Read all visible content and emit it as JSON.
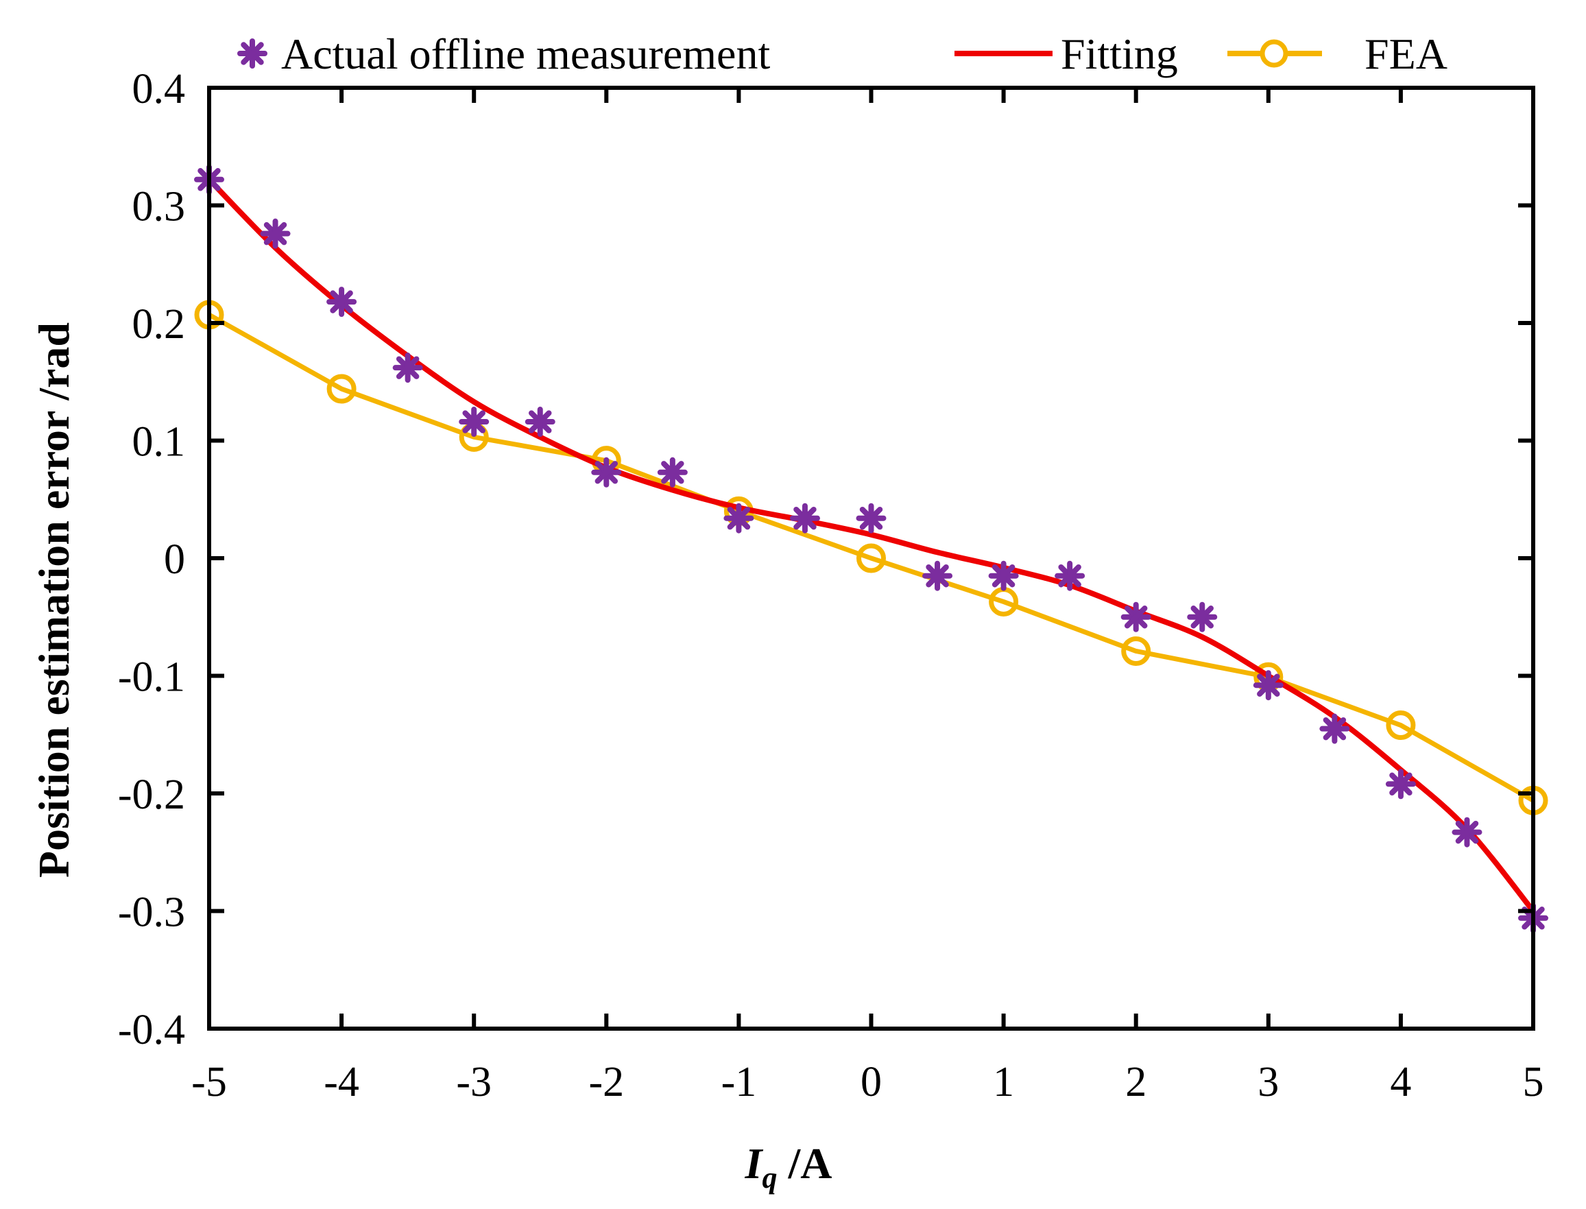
{
  "chart_data": {
    "type": "line",
    "title": "",
    "xlabel_main": "I",
    "xlabel_sub": "q",
    "xlabel_unit": " /A",
    "ylabel": "Position estimation error /rad",
    "xlim": [
      -5,
      5
    ],
    "ylim": [
      -0.4,
      0.4
    ],
    "xticks": [
      -5,
      -4,
      -3,
      -2,
      -1,
      0,
      1,
      2,
      3,
      4,
      5
    ],
    "xtick_labels": [
      "-5",
      "-4",
      "-3",
      "-2",
      "-1",
      "0",
      "1",
      "2",
      "3",
      "4",
      "5"
    ],
    "yticks": [
      -0.4,
      -0.3,
      -0.2,
      -0.1,
      0,
      0.1,
      0.2,
      0.3,
      0.4
    ],
    "ytick_labels": [
      "-0.4",
      "-0.3",
      "-0.2",
      "-0.1",
      "0",
      "0.1",
      "0.2",
      "0.3",
      "0.4"
    ],
    "grid": false,
    "legend_position": "top",
    "series": [
      {
        "name": "Actual offline measurement",
        "style": "markers-asterisk",
        "color": "#7B2D9E",
        "x": [
          -5,
          -4.5,
          -4,
          -3.5,
          -3,
          -2.5,
          -2,
          -1.5,
          -1,
          -0.5,
          0,
          0.5,
          1,
          1.5,
          2,
          2.5,
          3,
          3.5,
          4,
          4.5,
          5
        ],
        "y": [
          0.322,
          0.276,
          0.218,
          0.162,
          0.116,
          0.116,
          0.073,
          0.073,
          0.034,
          0.034,
          0.034,
          -0.015,
          -0.015,
          -0.015,
          -0.05,
          -0.05,
          -0.108,
          -0.145,
          -0.192,
          -0.233,
          -0.306
        ]
      },
      {
        "name": "Fitting",
        "style": "line",
        "color": "#EE0000",
        "x": [
          -5,
          -4.5,
          -4,
          -3.5,
          -3,
          -2.5,
          -2,
          -1.5,
          -1,
          -0.5,
          0,
          0.5,
          1,
          1.5,
          2,
          2.5,
          3,
          3.5,
          4,
          4.5,
          5
        ],
        "y": [
          0.322,
          0.264,
          0.215,
          0.172,
          0.133,
          0.103,
          0.077,
          0.058,
          0.043,
          0.032,
          0.02,
          0.005,
          -0.008,
          -0.023,
          -0.045,
          -0.067,
          -0.1,
          -0.135,
          -0.18,
          -0.23,
          -0.3
        ]
      },
      {
        "name": "FEA",
        "style": "line-circle",
        "color": "#F5B400",
        "x": [
          -5,
          -4,
          -3,
          -2,
          -1,
          0,
          1,
          2,
          3,
          4,
          5
        ],
        "y": [
          0.207,
          0.144,
          0.103,
          0.083,
          0.04,
          0,
          -0.037,
          -0.079,
          -0.101,
          -0.142,
          -0.206
        ]
      }
    ]
  }
}
